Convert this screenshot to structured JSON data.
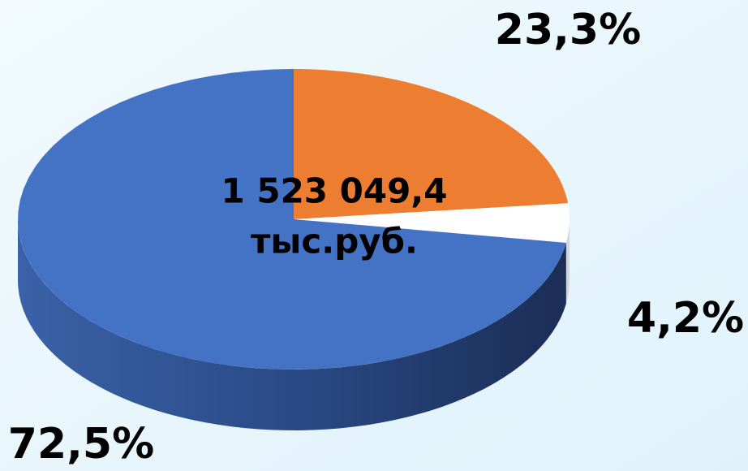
{
  "chart_data": {
    "type": "pie3d",
    "values": [
      23.3,
      4.2,
      72.5
    ],
    "value_labels": [
      "23,3%",
      "4,2%",
      "72,5%"
    ],
    "colors": [
      "#ed7d31",
      "#ffffff",
      "#4472c4"
    ],
    "annotations": [
      "1 523 049,4",
      "тыс.руб."
    ]
  }
}
